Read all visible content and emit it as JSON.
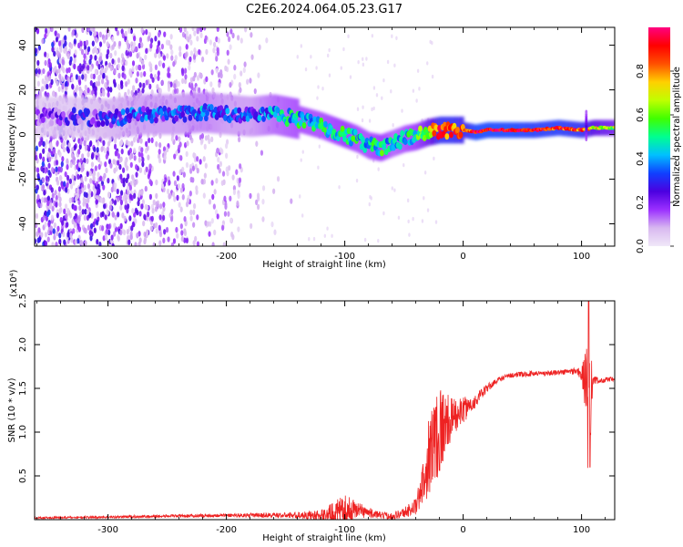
{
  "title": "C2E6.2024.064.05.23.G17",
  "chart_data": [
    {
      "type": "heatmap",
      "name": "spectrogram",
      "xlabel": "Height of straight line (km)",
      "ylabel": "Frequency (Hz)",
      "xlim": [
        -362,
        128
      ],
      "ylim": [
        -50,
        48
      ],
      "xticks": [
        -300,
        -200,
        -100,
        0,
        100
      ],
      "xtick_labels": [
        "-300",
        "-200",
        "-100",
        "0",
        "100"
      ],
      "yticks": [
        -40,
        -20,
        0,
        20,
        40
      ],
      "ytick_labels": [
        "-40",
        "-20",
        "0",
        "20",
        "40"
      ],
      "colorbar": {
        "label": "Normalized spectral amplitude",
        "range": [
          0,
          1
        ],
        "ticks": [
          0.0,
          0.2,
          0.4,
          0.6,
          0.8
        ],
        "tick_labels": [
          "0.0",
          "0.2",
          "0.4",
          "0.6",
          "0.8"
        ],
        "colors": [
          "#f0e8f8",
          "#d8b8f0",
          "#9b30ff",
          "#4b00e0",
          "#1040ff",
          "#00c0ff",
          "#00ff90",
          "#40ff00",
          "#c0ff00",
          "#ffd000",
          "#ff5000",
          "#ff0000",
          "#ff0080"
        ]
      },
      "ridge": {
        "x": [
          -360,
          -330,
          -300,
          -270,
          -240,
          -220,
          -200,
          -180,
          -160,
          -140,
          -120,
          -100,
          -90,
          -80,
          -70,
          -60,
          -50,
          -40,
          -30,
          -20,
          -10,
          0,
          10,
          20,
          40,
          60,
          80,
          100,
          110,
          128
        ],
        "freq": [
          8,
          8,
          7,
          9,
          9,
          10,
          9,
          8,
          9,
          7,
          4,
          0,
          -2,
          -5,
          -6,
          -4,
          -2,
          -1,
          1,
          2,
          2,
          2,
          1,
          2,
          2,
          2,
          3,
          2,
          3,
          3
        ],
        "amplitude": [
          0.15,
          0.18,
          0.25,
          0.3,
          0.3,
          0.35,
          0.3,
          0.3,
          0.4,
          0.45,
          0.45,
          0.5,
          0.45,
          0.45,
          0.5,
          0.4,
          0.45,
          0.5,
          0.65,
          0.85,
          0.85,
          0.8,
          0.95,
          0.95,
          0.95,
          0.9,
          0.9,
          0.85,
          0.7,
          0.6
        ]
      },
      "noise_region_xlim": [
        -362,
        -140
      ]
    },
    {
      "type": "line",
      "name": "snr",
      "xlabel": "Height of straight line (km)",
      "ylabel": "SNR (10 * v/v)",
      "yscale_label": "(x10⁴)",
      "xlim": [
        -362,
        128
      ],
      "ylim": [
        0,
        2.5
      ],
      "xticks": [
        -300,
        -200,
        -100,
        0,
        100
      ],
      "xtick_labels": [
        "-300",
        "-200",
        "-100",
        "0",
        "100"
      ],
      "yticks": [
        0.5,
        1.0,
        1.5,
        2.0,
        2.5
      ],
      "ytick_labels": [
        "0.5",
        "1.0",
        "1.5",
        "2.0",
        "2.5"
      ],
      "color": "#ee2222",
      "envelope": {
        "x": [
          -362,
          -300,
          -200,
          -150,
          -120,
          -110,
          -100,
          -90,
          -80,
          -70,
          -60,
          -50,
          -40,
          -35,
          -30,
          -25,
          -20,
          -15,
          -10,
          -5,
          0,
          10,
          20,
          30,
          40,
          60,
          80,
          95,
          100,
          104,
          106,
          108,
          110,
          115,
          120,
          128
        ],
        "base": [
          0.02,
          0.03,
          0.05,
          0.05,
          0.05,
          0.08,
          0.1,
          0.12,
          0.08,
          0.05,
          0.04,
          0.08,
          0.15,
          0.35,
          0.7,
          0.9,
          1.05,
          1.1,
          1.15,
          1.2,
          1.25,
          1.35,
          1.5,
          1.6,
          1.65,
          1.67,
          1.68,
          1.7,
          1.66,
          1.55,
          1.2,
          1.55,
          1.6,
          1.58,
          1.6,
          1.6
        ],
        "spread": [
          0.01,
          0.015,
          0.02,
          0.03,
          0.06,
          0.12,
          0.18,
          0.1,
          0.06,
          0.04,
          0.04,
          0.06,
          0.1,
          0.2,
          0.45,
          0.5,
          0.6,
          0.35,
          0.25,
          0.18,
          0.15,
          0.08,
          0.05,
          0.03,
          0.03,
          0.03,
          0.03,
          0.04,
          0.1,
          0.4,
          1.0,
          0.5,
          0.05,
          0.03,
          0.03,
          0.03
        ]
      }
    }
  ]
}
